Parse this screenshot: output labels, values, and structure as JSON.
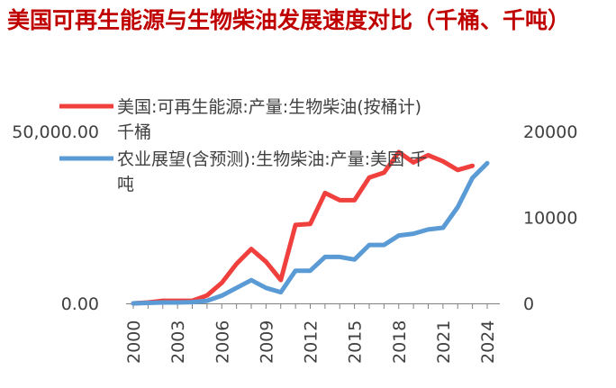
{
  "title": "美国可再生能源与生物柴油发展速度对比（千桶、千吨）",
  "chart_data": {
    "type": "line",
    "title": "美国可再生能源与生物柴油发展速度对比（千桶、千吨）",
    "x": [
      2000,
      2001,
      2002,
      2003,
      2004,
      2005,
      2006,
      2007,
      2008,
      2009,
      2010,
      2011,
      2012,
      2013,
      2014,
      2015,
      2016,
      2017,
      2018,
      2019,
      2020,
      2021,
      2022,
      2023,
      2024
    ],
    "x_ticks": [
      "2000",
      "2003",
      "2006",
      "2009",
      "2012",
      "2015",
      "2018",
      "2021",
      "2024"
    ],
    "left_axis": {
      "ylim": [
        0,
        50000
      ],
      "ticks": [
        "0.00",
        "50,000.00"
      ]
    },
    "right_axis": {
      "ylim": [
        0,
        20000
      ],
      "ticks": [
        "0",
        "10000",
        "20000"
      ]
    },
    "series": [
      {
        "name": "美国:可再生能源:产量:生物柴油(按桶计) 千桶",
        "axis": "left",
        "color": "#f0403d",
        "values": [
          0,
          250,
          750,
          750,
          750,
          2300,
          6000,
          11500,
          15800,
          12100,
          6800,
          22800,
          23100,
          32100,
          30000,
          30000,
          36600,
          38000,
          44000,
          41000,
          43100,
          41300,
          38800,
          40000,
          null
        ]
      },
      {
        "name": "农业展望(含预测):生物柴油:产量:美国 千吨",
        "axis": "right",
        "color": "#5b9bd5",
        "values": [
          0,
          50,
          100,
          100,
          150,
          300,
          900,
          1800,
          2700,
          1800,
          1300,
          3800,
          3800,
          5400,
          5400,
          5100,
          6800,
          6800,
          7900,
          8100,
          8600,
          8800,
          11200,
          14600,
          16300
        ]
      }
    ]
  },
  "legend": [
    {
      "line1": "美国:可再生能源:产量:生物柴油(按桶计)",
      "line2": "千桶",
      "color": "#f0403d"
    },
    {
      "line1": "农业展望(含预测):生物柴油:产量:美国 千",
      "line2": "吨",
      "color": "#5b9bd5"
    }
  ]
}
